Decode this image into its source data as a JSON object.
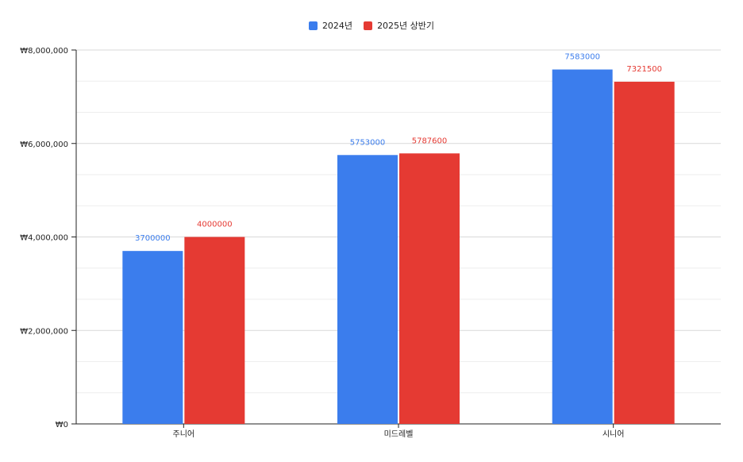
{
  "colors": {
    "series_2024": "#3b7ded",
    "series_2025h1": "#e53a33",
    "grid_major": "#d9d9d9",
    "grid_minor": "#eeeeee",
    "axis": "#222222",
    "text": "#222222"
  },
  "chart_data": {
    "type": "bar",
    "title": "",
    "xlabel": "",
    "ylabel": "",
    "categories": [
      "주니어",
      "미드레벨",
      "시니어"
    ],
    "series": [
      {
        "name": "2024년",
        "values": [
          3700000,
          5753000,
          7583000
        ],
        "labels": [
          "3700000",
          "5753000",
          "7583000"
        ]
      },
      {
        "name": "2025년 상반기",
        "values": [
          4000000,
          5787600,
          7321500
        ],
        "labels": [
          "4000000",
          "5787600",
          "7321500"
        ]
      }
    ],
    "ylim": [
      0,
      8000000
    ],
    "y_ticks": [
      0,
      2000000,
      4000000,
      6000000,
      8000000
    ],
    "y_tick_labels": [
      "₩0",
      "₩2,000,000",
      "₩4,000,000",
      "₩6,000,000",
      "₩8,000,000"
    ],
    "y_minor_ticks": [
      666667,
      1333333,
      2666667,
      3333333,
      4666667,
      5333333,
      6666667,
      7333333
    ],
    "grid": true,
    "legend_position": "top-center"
  }
}
